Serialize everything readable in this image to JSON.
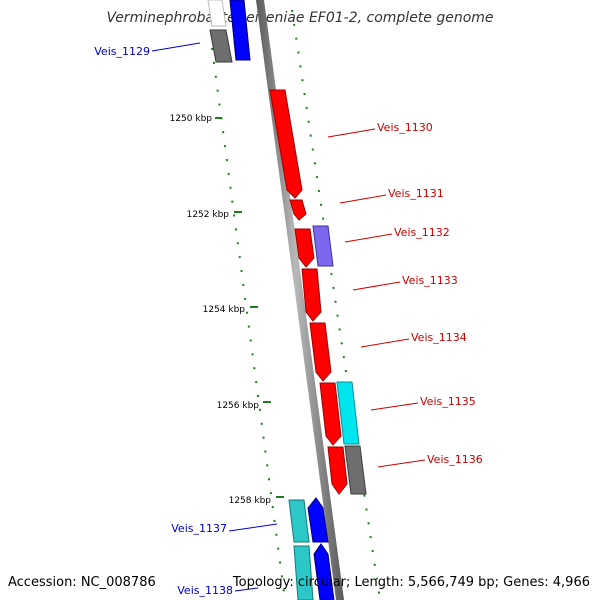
{
  "title": "Verminephrobacter eiseniae EF01-2, complete genome",
  "footer": {
    "accession": "Accession: NC_008786",
    "topology": "Topology: circular; Length: 5,566,749 bp; Genes: 4,966"
  },
  "ticks": [
    {
      "label": "1250 kbp"
    },
    {
      "label": "1252 kbp"
    },
    {
      "label": "1254 kbp"
    },
    {
      "label": "1256 kbp"
    },
    {
      "label": "1258 kbp"
    }
  ],
  "genes": [
    {
      "label": "Veis_1129",
      "strand": "reverse"
    },
    {
      "label": "Veis_1130",
      "strand": "forward"
    },
    {
      "label": "Veis_1131",
      "strand": "forward"
    },
    {
      "label": "Veis_1132",
      "strand": "forward"
    },
    {
      "label": "Veis_1133",
      "strand": "forward"
    },
    {
      "label": "Veis_1134",
      "strand": "forward"
    },
    {
      "label": "Veis_1135",
      "strand": "forward"
    },
    {
      "label": "Veis_1136",
      "strand": "forward"
    },
    {
      "label": "Veis_1137",
      "strand": "reverse"
    },
    {
      "label": "Veis_1138",
      "strand": "reverse"
    }
  ],
  "colors": {
    "forward_label": "#cc0000",
    "reverse_label": "#0000cc",
    "cds": "#ff0000",
    "blue_feature": "#0000ff",
    "cyan_feature": "#00e5ee",
    "teal_feature": "#2cc7c7",
    "grey_feature": "#6e6e6e",
    "purple_feature": "#7b68ee",
    "backbone": "#8a8a8a",
    "tick_marks": "#1e7d1e"
  }
}
